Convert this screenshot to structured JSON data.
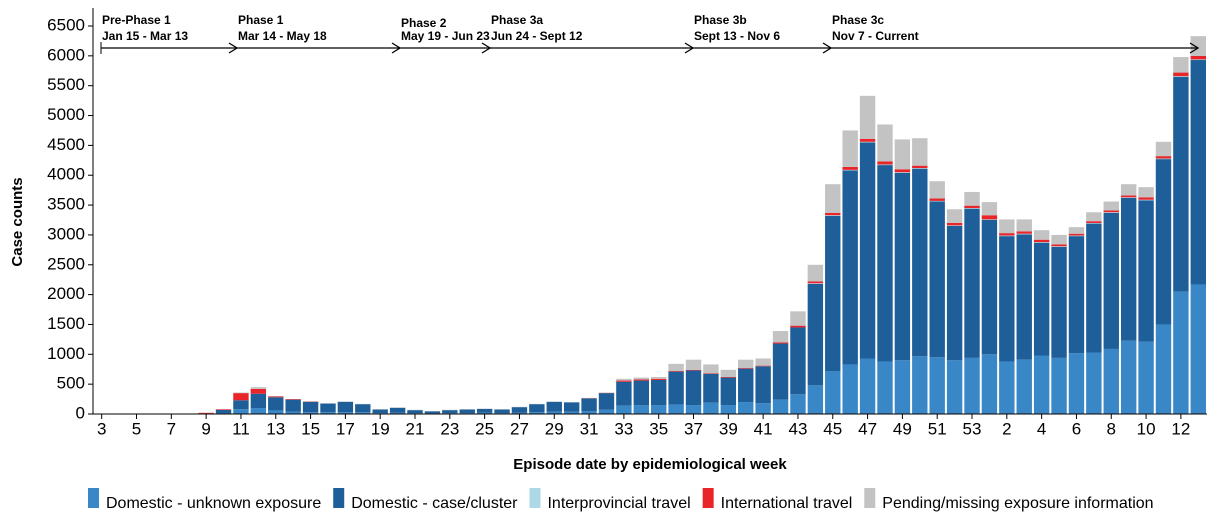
{
  "chart_data": {
    "type": "stacked-bar",
    "x_label": "Episode date by epidemiological week",
    "y_label": "Case counts",
    "ylim": [
      0,
      6500
    ],
    "yticks": [
      0,
      500,
      1000,
      1500,
      2000,
      2500,
      3000,
      3500,
      4000,
      4500,
      5000,
      5500,
      6000,
      6500
    ],
    "phases": [
      {
        "name": "Pre-Phase 1",
        "dates": "Jan 15 - Mar 13"
      },
      {
        "name": "Phase 1",
        "dates": "Mar 14 - May 18"
      },
      {
        "name": "Phase 2",
        "dates": "May 19 - Jun 23"
      },
      {
        "name": "Phase 3a",
        "dates": "Jun 24 - Sept 12"
      },
      {
        "name": "Phase 3b",
        "dates": "Sept 13 - Nov 6"
      },
      {
        "name": "Phase 3c",
        "dates": "Nov 7 - Current"
      }
    ],
    "categories": [
      "3",
      null,
      "5",
      null,
      "7",
      null,
      "9",
      null,
      "11",
      null,
      "13",
      null,
      "15",
      null,
      "17",
      null,
      "19",
      null,
      "21",
      null,
      "23",
      null,
      "25",
      null,
      "27",
      null,
      "29",
      null,
      "31",
      null,
      "33",
      null,
      "35",
      null,
      "37",
      null,
      "39",
      null,
      "41",
      null,
      "43",
      null,
      "45",
      null,
      "47",
      null,
      "49",
      null,
      "51",
      null,
      "53",
      null,
      "2",
      null,
      "4",
      null,
      "6",
      null,
      "8",
      null,
      "10",
      null,
      "12",
      null
    ],
    "series": [
      {
        "name": "Domestic - unknown exposure",
        "color": "#3a87c8",
        "values": [
          0,
          0,
          0,
          0,
          0,
          0,
          0,
          10,
          80,
          100,
          60,
          40,
          30,
          30,
          30,
          30,
          15,
          20,
          15,
          10,
          15,
          15,
          20,
          15,
          20,
          30,
          40,
          40,
          50,
          70,
          140,
          150,
          150,
          160,
          150,
          190,
          150,
          200,
          180,
          240,
          330,
          480,
          720,
          830,
          930,
          880,
          900,
          970,
          950,
          900,
          940,
          1000,
          880,
          910,
          980,
          940,
          1020,
          1030,
          1090,
          1230,
          1210,
          1500,
          2050,
          2170
        ]
      },
      {
        "name": "Domestic - case/cluster",
        "color": "#1f5f99",
        "values": [
          0,
          0,
          0,
          0,
          0,
          0,
          10,
          60,
          150,
          240,
          220,
          200,
          175,
          145,
          175,
          135,
          60,
          85,
          50,
          35,
          50,
          60,
          65,
          60,
          95,
          135,
          165,
          155,
          210,
          280,
          400,
          410,
          420,
          550,
          580,
          480,
          460,
          560,
          620,
          940,
          1120,
          1700,
          2600,
          3250,
          3620,
          3290,
          3140,
          3140,
          2610,
          2250,
          2500,
          2250,
          2100,
          2100,
          1890,
          1860,
          1960,
          2160,
          2280,
          2390,
          2370,
          2770,
          3600,
          3760
        ]
      },
      {
        "name": "Interprovincial travel",
        "color": "#add8e6",
        "values": [
          0,
          0,
          0,
          0,
          0,
          0,
          0,
          0,
          0,
          0,
          0,
          0,
          0,
          0,
          0,
          0,
          0,
          0,
          0,
          0,
          0,
          0,
          0,
          0,
          0,
          0,
          0,
          0,
          0,
          0,
          0,
          0,
          0,
          0,
          0,
          0,
          0,
          0,
          0,
          0,
          0,
          10,
          10,
          10,
          10,
          10,
          10,
          10,
          10,
          10,
          10,
          10,
          10,
          10,
          10,
          10,
          10,
          10,
          10,
          10,
          10,
          10,
          10,
          10
        ]
      },
      {
        "name": "International travel",
        "color": "#e8262a",
        "values": [
          0,
          0,
          0,
          0,
          0,
          0,
          10,
          10,
          120,
          80,
          15,
          10,
          5,
          0,
          0,
          0,
          0,
          0,
          0,
          0,
          0,
          0,
          0,
          0,
          0,
          0,
          0,
          0,
          5,
          5,
          20,
          20,
          20,
          10,
          10,
          10,
          10,
          10,
          10,
          20,
          30,
          30,
          40,
          50,
          50,
          50,
          50,
          40,
          40,
          40,
          40,
          70,
          40,
          40,
          40,
          30,
          30,
          30,
          30,
          30,
          40,
          40,
          60,
          60
        ]
      },
      {
        "name": "Pending/missing exposure information",
        "color": "#c3c3c3",
        "values": [
          0,
          0,
          0,
          0,
          0,
          0,
          0,
          0,
          10,
          30,
          5,
          0,
          0,
          5,
          5,
          5,
          5,
          5,
          5,
          5,
          5,
          5,
          5,
          5,
          5,
          5,
          5,
          5,
          5,
          5,
          30,
          30,
          30,
          120,
          170,
          150,
          120,
          140,
          120,
          190,
          240,
          280,
          480,
          610,
          720,
          620,
          500,
          460,
          290,
          230,
          230,
          220,
          230,
          200,
          160,
          160,
          110,
          150,
          150,
          190,
          170,
          240,
          260,
          330
        ]
      }
    ]
  }
}
